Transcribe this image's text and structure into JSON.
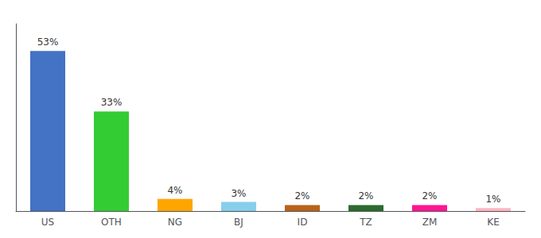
{
  "chart_data": {
    "type": "bar",
    "categories": [
      "US",
      "OTH",
      "NG",
      "BJ",
      "ID",
      "TZ",
      "ZM",
      "KE"
    ],
    "values": [
      53,
      33,
      4,
      3,
      2,
      2,
      2,
      1
    ],
    "value_labels": [
      "53%",
      "33%",
      "4%",
      "3%",
      "2%",
      "2%",
      "2%",
      "1%"
    ],
    "data_labels": true,
    "colors": [
      "#4472C4",
      "#33CC33",
      "#FFA500",
      "#87CEEB",
      "#B8621A",
      "#2D6A2D",
      "#FF1493",
      "#FFB6C1"
    ],
    "ylim": [
      0,
      62
    ],
    "tick_labels": "x",
    "grid": false
  }
}
